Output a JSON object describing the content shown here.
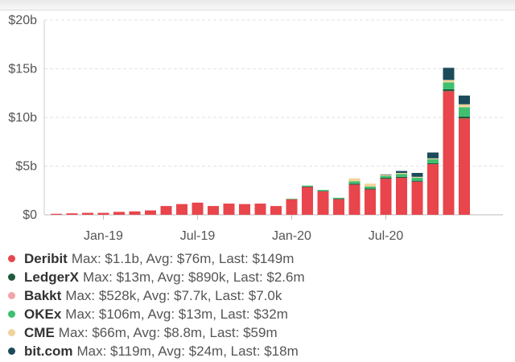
{
  "chart_data": {
    "type": "bar",
    "stacked": true,
    "y_tick_labels": [
      "$0",
      "$5b",
      "$10b",
      "$15b",
      "$20b"
    ],
    "y_ticks": [
      0,
      5,
      10,
      15,
      20
    ],
    "ylim": [
      0,
      20
    ],
    "x_tick_labels": [
      "Jan-19",
      "Jul-19",
      "Jan-20",
      "Jul-20"
    ],
    "x_tick_positions": [
      3,
      9,
      15,
      21
    ],
    "grid": true,
    "legend_position": "bottom",
    "series": [
      {
        "name": "Deribit",
        "color": "#e8454c",
        "values": [
          0.1,
          0.15,
          0.2,
          0.2,
          0.3,
          0.35,
          0.45,
          0.9,
          1.1,
          1.25,
          0.9,
          1.15,
          1.1,
          1.15,
          0.9,
          1.6,
          2.85,
          2.4,
          1.6,
          3.1,
          2.6,
          3.7,
          3.8,
          3.4,
          5.2,
          12.7,
          9.9
        ]
      },
      {
        "name": "LedgerX",
        "color": "#1f5a3c",
        "values": [
          0,
          0,
          0,
          0,
          0,
          0,
          0,
          0,
          0,
          0,
          0,
          0,
          0,
          0,
          0,
          0,
          0.05,
          0.05,
          0.05,
          0.1,
          0.1,
          0.1,
          0.1,
          0.1,
          0.1,
          0.2,
          0.2
        ]
      },
      {
        "name": "Bakkt",
        "color": "#f4a3a8",
        "values": [
          0,
          0,
          0,
          0,
          0,
          0,
          0,
          0,
          0,
          0,
          0,
          0,
          0,
          0,
          0,
          0,
          0,
          0,
          0,
          0,
          0,
          0,
          0,
          0,
          0,
          0,
          0
        ]
      },
      {
        "name": "OKEx",
        "color": "#3fbf6f",
        "values": [
          0,
          0,
          0,
          0,
          0,
          0,
          0,
          0,
          0,
          0,
          0,
          0,
          0,
          0,
          0,
          0.05,
          0.1,
          0.1,
          0.1,
          0.25,
          0.2,
          0.2,
          0.3,
          0.3,
          0.4,
          0.7,
          0.95
        ]
      },
      {
        "name": "CME",
        "color": "#f0d39a",
        "values": [
          0,
          0,
          0,
          0,
          0,
          0,
          0,
          0,
          0,
          0,
          0,
          0,
          0,
          0,
          0,
          0,
          0,
          0,
          0,
          0.3,
          0.3,
          0.1,
          0.1,
          0.1,
          0.1,
          0.25,
          0.3
        ]
      },
      {
        "name": "bit.com",
        "color": "#1b4b5b",
        "values": [
          0,
          0,
          0,
          0,
          0,
          0,
          0,
          0,
          0,
          0,
          0,
          0,
          0,
          0,
          0,
          0,
          0,
          0,
          0,
          0,
          0,
          0.05,
          0.2,
          0.4,
          0.6,
          1.25,
          0.9
        ]
      }
    ]
  },
  "legend": [
    {
      "name": "Deribit",
      "stats": "Max: $1.1b, Avg: $76m, Last: $149m",
      "color": "#e8454c"
    },
    {
      "name": "LedgerX",
      "stats": "Max: $13m, Avg: $890k, Last: $2.6m",
      "color": "#1f5a3c"
    },
    {
      "name": "Bakkt",
      "stats": "Max: $528k, Avg: $7.7k, Last: $7.0k",
      "color": "#f4a3a8"
    },
    {
      "name": "OKEx",
      "stats": "Max: $106m, Avg: $13m, Last: $32m",
      "color": "#3fbf6f"
    },
    {
      "name": "CME",
      "stats": "Max: $66m, Avg: $8.8m, Last: $59m",
      "color": "#f0d39a"
    },
    {
      "name": "bit.com",
      "stats": "Max: $119m, Avg: $24m, Last: $18m",
      "color": "#1b4b5b"
    }
  ]
}
